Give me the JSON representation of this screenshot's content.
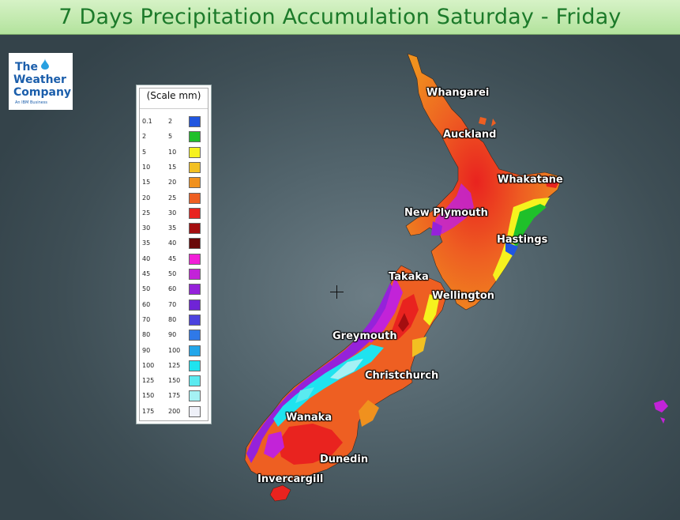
{
  "title": "7 Days Precipitation Accumulation Saturday - Friday",
  "logo": {
    "line1": "The",
    "line2": "Weather",
    "line3": "Company",
    "tagline": "An IBM Business",
    "color": "#1b5eab"
  },
  "legend": {
    "title": "(Scale mm)",
    "rows": [
      {
        "from": "0.1",
        "to": "2",
        "color": "#2156e0"
      },
      {
        "from": "2",
        "to": "5",
        "color": "#1fc02a"
      },
      {
        "from": "5",
        "to": "10",
        "color": "#f6f21e"
      },
      {
        "from": "10",
        "to": "15",
        "color": "#f2c022"
      },
      {
        "from": "15",
        "to": "20",
        "color": "#f0911e"
      },
      {
        "from": "20",
        "to": "25",
        "color": "#ee5f22"
      },
      {
        "from": "25",
        "to": "30",
        "color": "#e9231f"
      },
      {
        "from": "30",
        "to": "35",
        "color": "#a40e10"
      },
      {
        "from": "35",
        "to": "40",
        "color": "#6a0808"
      },
      {
        "from": "40",
        "to": "45",
        "color": "#f21fd8"
      },
      {
        "from": "45",
        "to": "50",
        "color": "#c223d8"
      },
      {
        "from": "50",
        "to": "60",
        "color": "#9522da"
      },
      {
        "from": "60",
        "to": "70",
        "color": "#6f24d6"
      },
      {
        "from": "70",
        "to": "80",
        "color": "#4c42de"
      },
      {
        "from": "80",
        "to": "90",
        "color": "#2f79e8"
      },
      {
        "from": "90",
        "to": "100",
        "color": "#22a6ea"
      },
      {
        "from": "100",
        "to": "125",
        "color": "#1fe3ef"
      },
      {
        "from": "125",
        "to": "150",
        "color": "#5aeaf0"
      },
      {
        "from": "150",
        "to": "175",
        "color": "#a5f1f4"
      },
      {
        "from": "175",
        "to": "200",
        "color": "#eef0f8"
      }
    ]
  },
  "cities": {
    "whangarei": "Whangarei",
    "auckland": "Auckland",
    "whakatane": "Whakatane",
    "new_plymouth": "New Plymouth",
    "hastings": "Hastings",
    "takaka": "Takaka",
    "wellington": "Wellington",
    "greymouth": "Greymouth",
    "christchurch": "Christchurch",
    "wanaka": "Wanaka",
    "dunedin": "Dunedin",
    "invercargill": "Invercargill"
  }
}
